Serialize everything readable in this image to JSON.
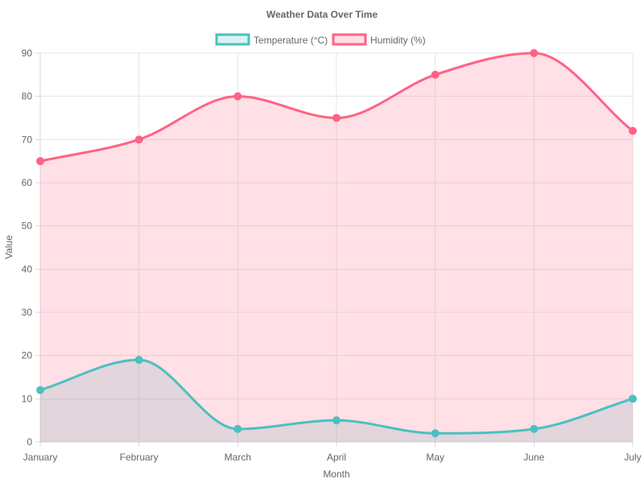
{
  "chart_data": {
    "type": "line",
    "title": "Weather Data Over Time",
    "xlabel": "Month",
    "ylabel": "Value",
    "categories": [
      "January",
      "February",
      "March",
      "April",
      "May",
      "June",
      "July"
    ],
    "ylim": [
      0,
      90
    ],
    "y_ticks": [
      0,
      10,
      20,
      30,
      40,
      50,
      60,
      70,
      80,
      90
    ],
    "grid": true,
    "legend_position": "top",
    "series": [
      {
        "name": "Temperature (°C)",
        "values": [
          12,
          19,
          3,
          5,
          2,
          3,
          10
        ],
        "color": "#4bc0c0",
        "fill": "rgba(75, 192, 192, 0.2)",
        "area": true
      },
      {
        "name": "Humidity (%)",
        "values": [
          65,
          70,
          80,
          75,
          85,
          90,
          72
        ],
        "color": "#ff6384",
        "fill": "rgba(255, 99, 132, 0.2)",
        "area": true
      }
    ]
  }
}
